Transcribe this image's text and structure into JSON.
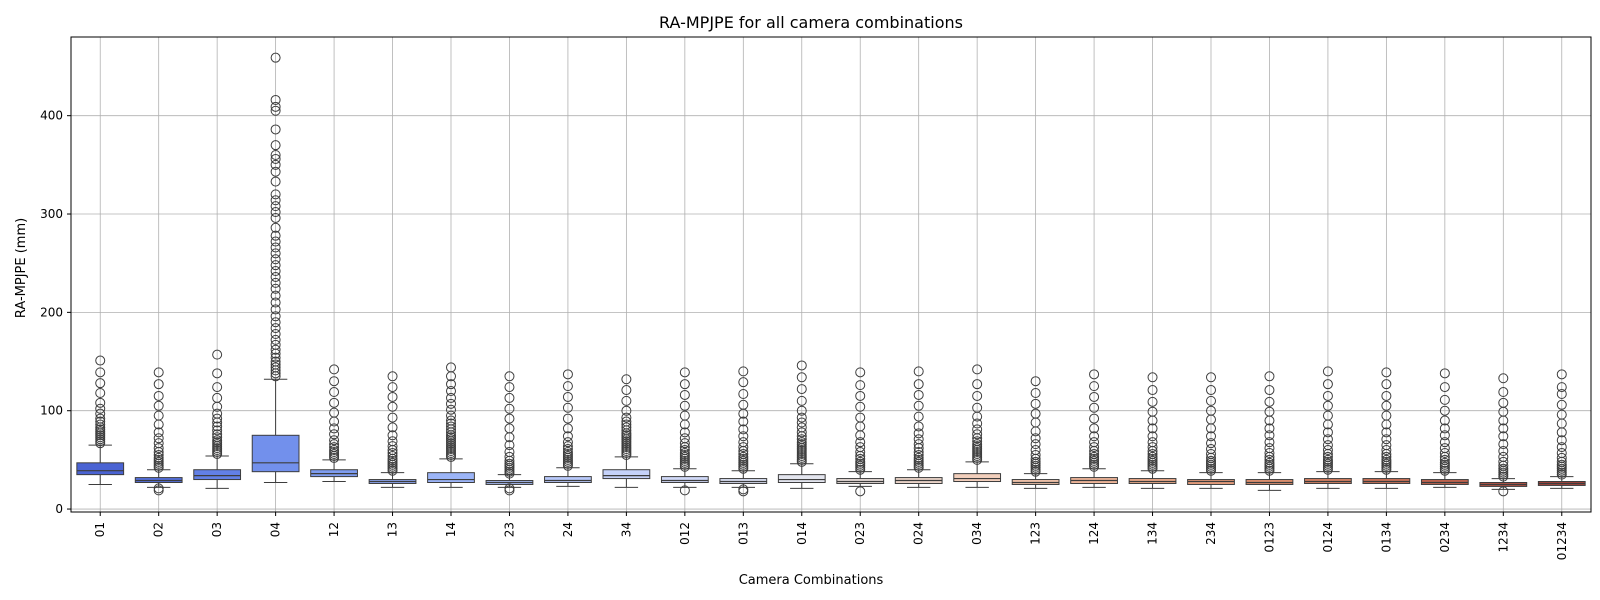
{
  "chart_data": {
    "type": "boxplot",
    "title": "RA-MPJPE for all camera combinations",
    "xlabel": "Camera Combinations",
    "ylabel": "RA-MPJPE (mm)",
    "ylim": [
      -3,
      480
    ],
    "yticks": [
      0,
      100,
      200,
      300,
      400
    ],
    "grid": true,
    "boxes": [
      {
        "label": "01",
        "color": "#4a63d3",
        "whislo": 25,
        "q1": 35,
        "med": 39,
        "q3": 47,
        "whishi": 65,
        "fliers": [
          67,
          69,
          71,
          73,
          75,
          77,
          79,
          81,
          83,
          86,
          89,
          92,
          97,
          102,
          108,
          118,
          128,
          139,
          151
        ]
      },
      {
        "label": "02",
        "color": "#5570de",
        "whislo": 22,
        "q1": 27,
        "med": 29,
        "q3": 32,
        "whishi": 40,
        "fliers": [
          19,
          21,
          42,
          44,
          46,
          48,
          50,
          52,
          55,
          58,
          62,
          67,
          72,
          78,
          86,
          95,
          105,
          115,
          127,
          139
        ]
      },
      {
        "label": "03",
        "color": "#6280e6",
        "whislo": 21,
        "q1": 30,
        "med": 34,
        "q3": 40,
        "whishi": 54,
        "fliers": [
          56,
          58,
          60,
          62,
          64,
          66,
          68,
          70,
          73,
          76,
          80,
          84,
          88,
          92,
          97,
          104,
          113,
          124,
          138,
          157
        ]
      },
      {
        "label": "04",
        "color": "#7290ec",
        "whislo": 27,
        "q1": 38,
        "med": 47,
        "q3": 75,
        "whishi": 132,
        "fliers": [
          135,
          138,
          141,
          144,
          147,
          150,
          154,
          158,
          162,
          167,
          172,
          178,
          184,
          190,
          196,
          203,
          210,
          217,
          224,
          230,
          236,
          242,
          248,
          254,
          260,
          266,
          272,
          278,
          286,
          296,
          302,
          308,
          314,
          320,
          333,
          343,
          350,
          356,
          360,
          370,
          386,
          405,
          409,
          416,
          459
        ]
      },
      {
        "label": "12",
        "color": "#7f9df1",
        "whislo": 28,
        "q1": 33,
        "med": 36,
        "q3": 40,
        "whishi": 50,
        "fliers": [
          52,
          54,
          56,
          58,
          60,
          63,
          66,
          70,
          76,
          82,
          89,
          98,
          108,
          119,
          130,
          142
        ]
      },
      {
        "label": "13",
        "color": "#8ea9f5",
        "whislo": 22,
        "q1": 26,
        "med": 28,
        "q3": 30,
        "whishi": 37,
        "fliers": [
          39,
          41,
          43,
          45,
          47,
          49,
          51,
          54,
          57,
          60,
          64,
          69,
          75,
          83,
          93,
          104,
          114,
          124,
          135
        ]
      },
      {
        "label": "14",
        "color": "#9cb5f8",
        "whislo": 22,
        "q1": 27,
        "med": 30,
        "q3": 37,
        "whishi": 51,
        "fliers": [
          53,
          55,
          57,
          59,
          61,
          63,
          65,
          67,
          69,
          71,
          73,
          75,
          78,
          81,
          84,
          87,
          90,
          95,
          101,
          107,
          113,
          120,
          127,
          135,
          144
        ]
      },
      {
        "label": "23",
        "color": "#aabffa",
        "whislo": 22,
        "q1": 25,
        "med": 27,
        "q3": 29,
        "whishi": 35,
        "fliers": [
          19,
          21,
          36,
          38,
          40,
          42,
          44,
          46,
          49,
          53,
          58,
          65,
          73,
          82,
          92,
          102,
          113,
          124,
          135
        ]
      },
      {
        "label": "24",
        "color": "#b8c9fb",
        "whislo": 23,
        "q1": 27,
        "med": 29,
        "q3": 33,
        "whishi": 42,
        "fliers": [
          44,
          46,
          48,
          50,
          52,
          54,
          56,
          58,
          61,
          64,
          68,
          74,
          82,
          92,
          103,
          114,
          125,
          137
        ]
      },
      {
        "label": "34",
        "color": "#c5d2fa",
        "whislo": 22,
        "q1": 31,
        "med": 34,
        "q3": 40,
        "whishi": 53,
        "fliers": [
          55,
          57,
          59,
          61,
          63,
          65,
          67,
          69,
          71,
          73,
          75,
          77,
          80,
          83,
          86,
          89,
          93,
          100,
          110,
          121,
          132
        ]
      },
      {
        "label": "012",
        "color": "#d0d9f8",
        "whislo": 22,
        "q1": 27,
        "med": 29,
        "q3": 33,
        "whishi": 41,
        "fliers": [
          19,
          43,
          45,
          47,
          49,
          51,
          53,
          55,
          57,
          60,
          63,
          67,
          72,
          78,
          86,
          95,
          105,
          116,
          127,
          139
        ]
      },
      {
        "label": "013",
        "color": "#dbe0f4",
        "whislo": 22,
        "q1": 26,
        "med": 28,
        "q3": 31,
        "whishi": 39,
        "fliers": [
          18,
          20,
          41,
          43,
          45,
          47,
          49,
          51,
          53,
          56,
          59,
          63,
          68,
          74,
          81,
          89,
          97,
          106,
          117,
          129,
          140
        ]
      },
      {
        "label": "014",
        "color": "#e3e5ee",
        "whislo": 21,
        "q1": 27,
        "med": 30,
        "q3": 35,
        "whishi": 46,
        "fliers": [
          48,
          50,
          52,
          54,
          56,
          58,
          60,
          62,
          64,
          66,
          68,
          71,
          74,
          78,
          83,
          88,
          93,
          100,
          110,
          122,
          134,
          146
        ]
      },
      {
        "label": "023",
        "color": "#eadfdb",
        "whislo": 23,
        "q1": 26,
        "med": 28,
        "q3": 31,
        "whishi": 38,
        "fliers": [
          18,
          40,
          42,
          44,
          46,
          48,
          51,
          54,
          58,
          63,
          68,
          75,
          84,
          93,
          104,
          115,
          126,
          139
        ]
      },
      {
        "label": "024",
        "color": "#efd8cc",
        "whislo": 22,
        "q1": 26,
        "med": 29,
        "q3": 32,
        "whishi": 40,
        "fliers": [
          42,
          44,
          46,
          48,
          50,
          52,
          55,
          58,
          62,
          66,
          71,
          77,
          84,
          94,
          105,
          116,
          127,
          140
        ]
      },
      {
        "label": "034",
        "color": "#f2cfbc",
        "whislo": 22,
        "q1": 28,
        "med": 31,
        "q3": 36,
        "whishi": 48,
        "fliers": [
          50,
          52,
          54,
          56,
          58,
          60,
          62,
          64,
          66,
          69,
          72,
          76,
          81,
          87,
          94,
          103,
          115,
          127,
          142
        ]
      },
      {
        "label": "123",
        "color": "#f3c4ab",
        "whislo": 21,
        "q1": 25,
        "med": 27,
        "q3": 30,
        "whishi": 36,
        "fliers": [
          38,
          40,
          42,
          44,
          46,
          48,
          51,
          55,
          60,
          66,
          72,
          79,
          88,
          97,
          107,
          118,
          130
        ]
      },
      {
        "label": "124",
        "color": "#f2b89b",
        "whislo": 22,
        "q1": 26,
        "med": 29,
        "q3": 32,
        "whishi": 41,
        "fliers": [
          43,
          45,
          47,
          49,
          51,
          53,
          56,
          59,
          63,
          68,
          74,
          82,
          92,
          103,
          114,
          125,
          137
        ]
      },
      {
        "label": "134",
        "color": "#eeac8b",
        "whislo": 21,
        "q1": 26,
        "med": 28,
        "q3": 31,
        "whishi": 39,
        "fliers": [
          41,
          43,
          45,
          47,
          49,
          51,
          53,
          56,
          59,
          63,
          68,
          74,
          82,
          90,
          99,
          109,
          121,
          134
        ]
      },
      {
        "label": "234",
        "color": "#e89e7d",
        "whislo": 21,
        "q1": 25,
        "med": 28,
        "q3": 30,
        "whishi": 37,
        "fliers": [
          39,
          41,
          43,
          45,
          47,
          49,
          52,
          56,
          61,
          67,
          74,
          82,
          91,
          100,
          110,
          121,
          134
        ]
      },
      {
        "label": "0123",
        "color": "#e0906f",
        "whislo": 19,
        "q1": 25,
        "med": 27,
        "q3": 30,
        "whishi": 37,
        "fliers": [
          39,
          41,
          43,
          45,
          47,
          50,
          53,
          57,
          62,
          68,
          75,
          82,
          90,
          99,
          109,
          121,
          135
        ]
      },
      {
        "label": "0124",
        "color": "#d88263",
        "whislo": 21,
        "q1": 26,
        "med": 28,
        "q3": 31,
        "whishi": 38,
        "fliers": [
          40,
          42,
          44,
          46,
          48,
          50,
          53,
          56,
          60,
          65,
          71,
          78,
          86,
          95,
          105,
          115,
          127,
          140
        ]
      },
      {
        "label": "0134",
        "color": "#cd7358",
        "whislo": 21,
        "q1": 26,
        "med": 28,
        "q3": 31,
        "whishi": 38,
        "fliers": [
          40,
          42,
          44,
          46,
          48,
          50,
          53,
          56,
          60,
          65,
          71,
          78,
          86,
          95,
          105,
          115,
          127,
          139
        ]
      },
      {
        "label": "0234",
        "color": "#c2634e",
        "whislo": 22,
        "q1": 25,
        "med": 27,
        "q3": 30,
        "whishi": 37,
        "fliers": [
          39,
          41,
          43,
          45,
          47,
          50,
          53,
          57,
          62,
          68,
          75,
          82,
          90,
          100,
          111,
          124,
          138
        ]
      },
      {
        "label": "1234",
        "color": "#b55345",
        "whislo": 20,
        "q1": 23,
        "med": 25,
        "q3": 27,
        "whishi": 31,
        "fliers": [
          18,
          33,
          35,
          37,
          39,
          41,
          44,
          48,
          53,
          59,
          66,
          74,
          82,
          90,
          99,
          108,
          119,
          133
        ]
      },
      {
        "label": "01234",
        "color": "#a8443c",
        "whislo": 21,
        "q1": 24,
        "med": 26,
        "q3": 28,
        "whishi": 33,
        "fliers": [
          35,
          37,
          39,
          41,
          43,
          45,
          48,
          52,
          57,
          63,
          70,
          78,
          87,
          96,
          106,
          117,
          124,
          137
        ]
      }
    ]
  }
}
